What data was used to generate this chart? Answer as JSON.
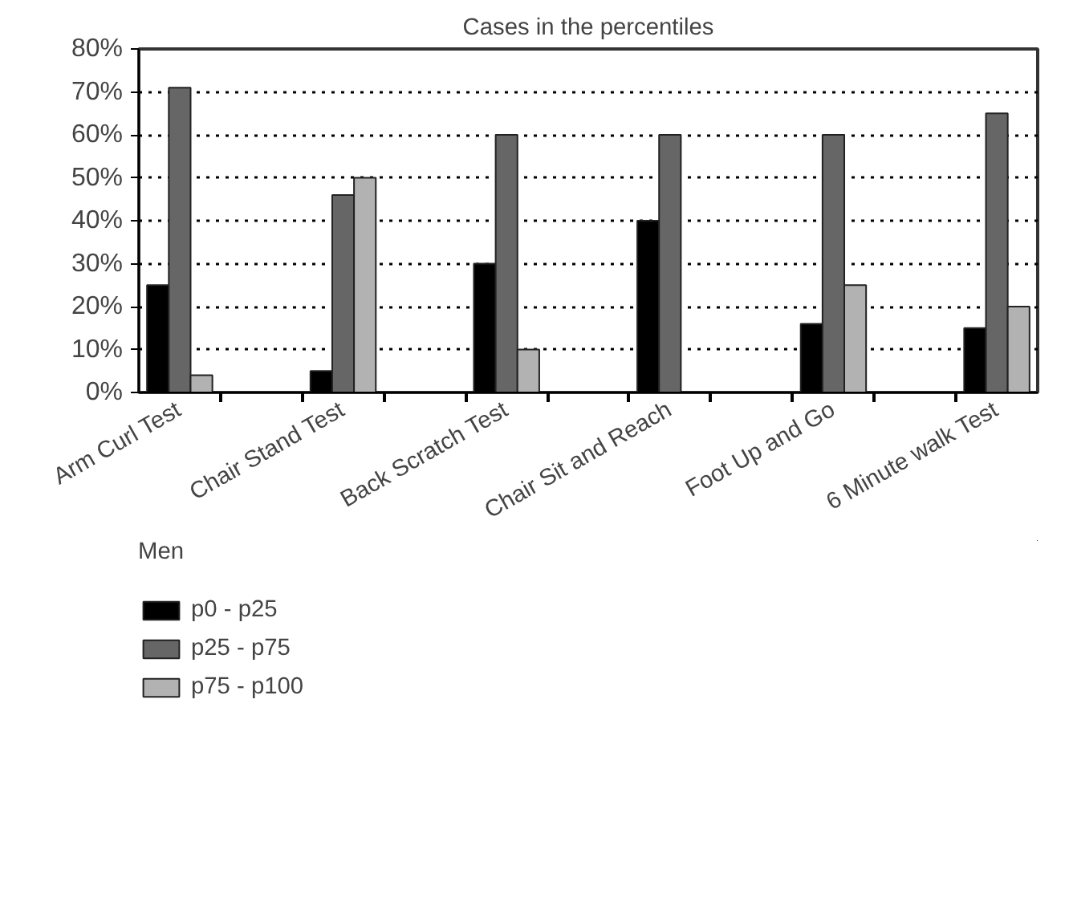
{
  "chart_data": {
    "type": "bar",
    "title": "Cases in the percentiles",
    "categories": [
      "Arm Curl Test",
      null,
      "Chair Stand Test",
      null,
      "Back Scratch Test",
      null,
      "Chair Sit and Reach",
      null,
      "Foot Up and Go",
      null,
      "6 Minute walk Test"
    ],
    "series": [
      {
        "name": "p0 - p25",
        "color": "#000000",
        "values": [
          25,
          null,
          5,
          null,
          30,
          null,
          40,
          null,
          16,
          null,
          15
        ]
      },
      {
        "name": "p25 - p75",
        "color": "#666666",
        "values": [
          71,
          null,
          46,
          null,
          60,
          null,
          60,
          null,
          60,
          null,
          65
        ]
      },
      {
        "name": "p75 - p100",
        "color": "#b2b2b2",
        "values": [
          4,
          null,
          50,
          null,
          10,
          null,
          null,
          null,
          25,
          null,
          20
        ]
      }
    ],
    "ylim": [
      0,
      80
    ],
    "yticks": [
      {
        "value": 0,
        "label": "0%"
      },
      {
        "value": 10,
        "label": "10%"
      },
      {
        "value": 20,
        "label": "20%"
      },
      {
        "value": 30,
        "label": "30%"
      },
      {
        "value": 40,
        "label": "40%"
      },
      {
        "value": 50,
        "label": "50%"
      },
      {
        "value": 60,
        "label": "60%"
      },
      {
        "value": 70,
        "label": "70%"
      },
      {
        "value": 80,
        "label": "80%"
      }
    ],
    "grid": "y",
    "legend": "bottom",
    "legend_title": "Men"
  }
}
